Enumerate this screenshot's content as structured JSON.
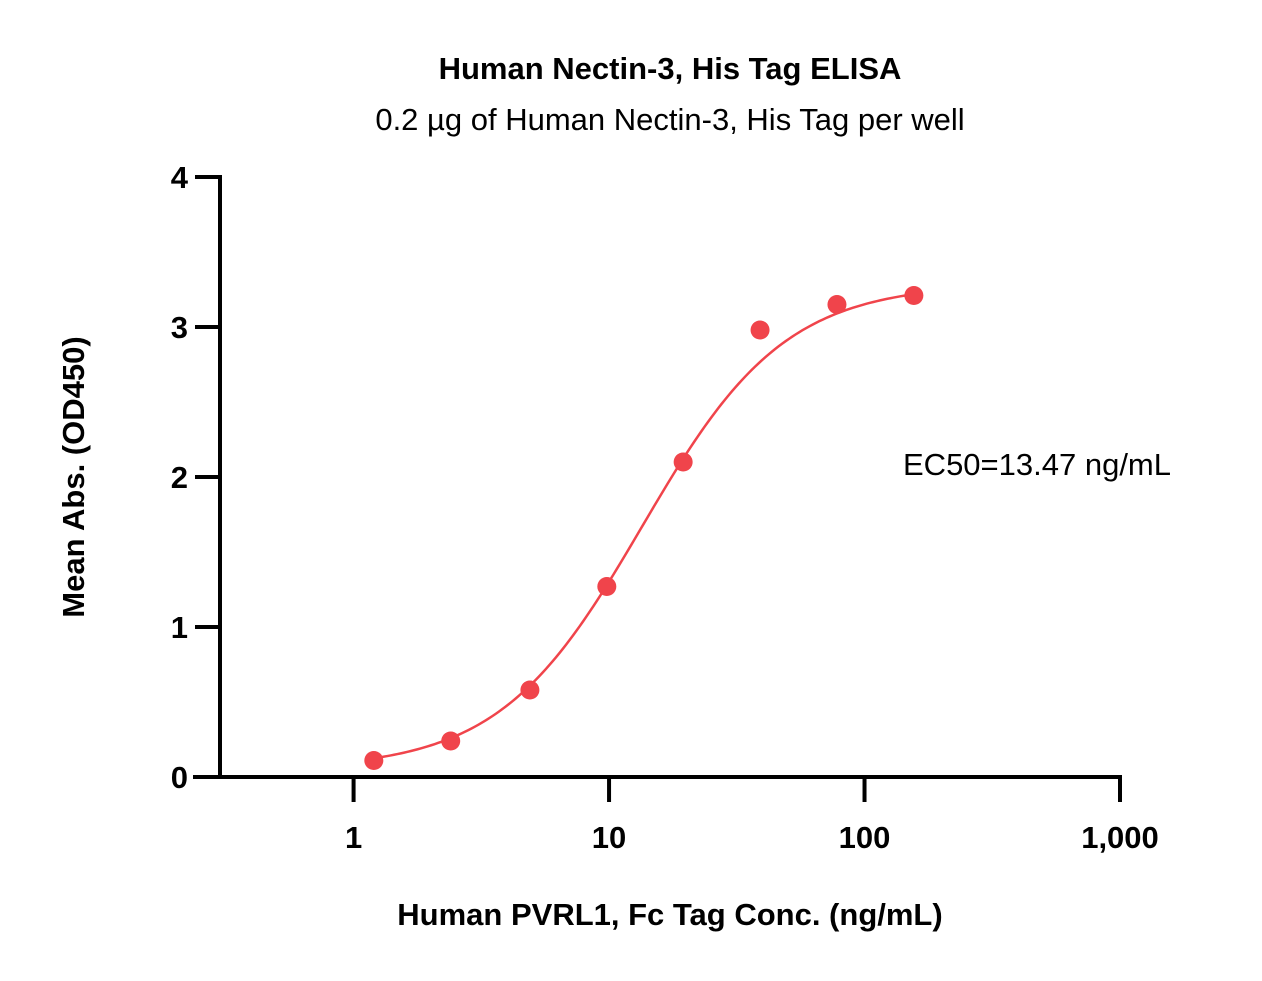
{
  "chart_data": {
    "type": "scatter",
    "title": "Human Nectin-3, His Tag ELISA",
    "subtitle": "0.2 µg of Human Nectin-3, His Tag per well",
    "xlabel": "Human PVRL1, Fc Tag Conc. (ng/mL)",
    "ylabel": "Mean Abs. (OD450)",
    "x_scale": "log",
    "xlim": [
      0.3,
      1000
    ],
    "ylim": [
      0,
      4
    ],
    "x_ticks": [
      1,
      10,
      100,
      1000
    ],
    "x_tick_labels": [
      "1",
      "10",
      "100",
      "1,000"
    ],
    "y_ticks": [
      0,
      1,
      2,
      3,
      4
    ],
    "y_tick_labels": [
      "0",
      "1",
      "2",
      "3",
      "4"
    ],
    "grid": false,
    "annotation": "EC50=13.47 ng/mL",
    "series": [
      {
        "color": "#f0444b",
        "x": [
          1.2,
          2.4,
          4.9,
          9.8,
          19.5,
          39,
          78,
          156
        ],
        "y": [
          0.11,
          0.24,
          0.58,
          1.27,
          2.1,
          2.98,
          3.15,
          3.21
        ],
        "fit": {
          "type": "4PL",
          "bottom": 0.05,
          "top": 3.29,
          "ec50": 13.47,
          "hill": 1.55
        }
      }
    ]
  }
}
